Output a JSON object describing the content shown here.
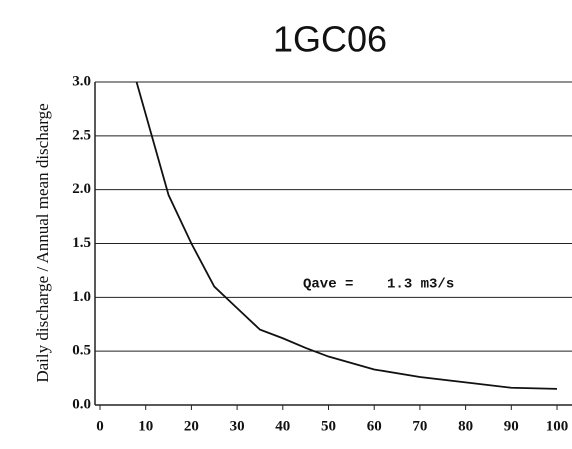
{
  "chart_data": {
    "type": "line",
    "title": "1GC06",
    "y_label": "Daily discharge / Annual mean discharge",
    "annotation": "Qave =    1.3 m3/s",
    "x": [
      8,
      10,
      15,
      20,
      25,
      30,
      35,
      40,
      45,
      50,
      60,
      70,
      80,
      90,
      100
    ],
    "series": [
      {
        "name": "1GC06",
        "color": "#111111",
        "values": [
          3.0,
          2.7,
          1.95,
          1.5,
          1.1,
          0.9,
          0.7,
          0.62,
          0.53,
          0.45,
          0.33,
          0.26,
          0.21,
          0.16,
          0.15
        ]
      }
    ],
    "xlim": [
      0,
      100
    ],
    "xticks": [
      0,
      10,
      20,
      30,
      40,
      50,
      60,
      70,
      80,
      90,
      100
    ],
    "ylim": [
      0,
      3
    ],
    "yticks": [
      {
        "value": 0,
        "label": "0.0"
      },
      0.5,
      {
        "value": 1,
        "label": "1.0"
      },
      1.5,
      {
        "value": 2,
        "label": "2.0"
      },
      2.5,
      {
        "value": 3,
        "label": "3.0"
      }
    ],
    "grid": true
  }
}
